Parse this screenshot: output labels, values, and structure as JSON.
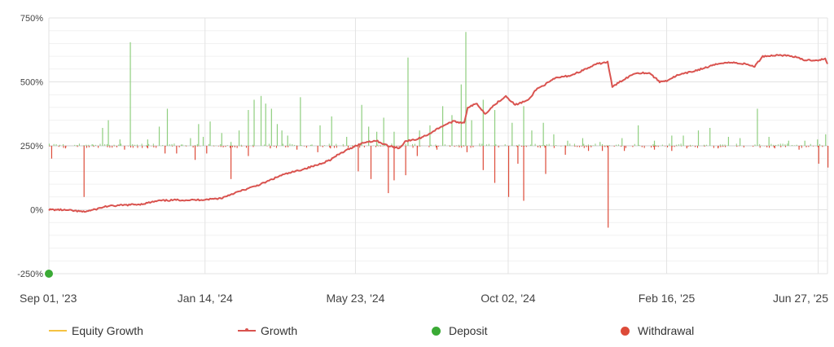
{
  "chart_data": {
    "type": "line",
    "y_tick_labels": [
      "750%",
      "500%",
      "250%",
      "0%",
      "-250%"
    ],
    "y_ticks": [
      750,
      500,
      250,
      0,
      -250
    ],
    "ylim": [
      -250,
      750
    ],
    "x_tick_labels": [
      "Sep 01, '23",
      "Jan 14, '24",
      "May 23, '24",
      "Oct 02, '24",
      "Feb 16, '25",
      "Jun 27, '25"
    ],
    "x_range": [
      "2023-09-01",
      "2025-07-05"
    ],
    "grid": true,
    "legend_position": "bottom",
    "series": [
      {
        "name": "Equity Growth",
        "color": "#f5c242",
        "points": []
      },
      {
        "name": "Growth",
        "color": "#d9534f",
        "points": [
          [
            "2023-09-01",
            0
          ],
          [
            "2023-09-10",
            0
          ],
          [
            "2023-09-20",
            -3
          ],
          [
            "2023-10-01",
            -8
          ],
          [
            "2023-10-10",
            0
          ],
          [
            "2023-10-20",
            13
          ],
          [
            "2023-11-05",
            18
          ],
          [
            "2023-11-20",
            22
          ],
          [
            "2023-12-05",
            35
          ],
          [
            "2023-12-20",
            38
          ],
          [
            "2024-01-05",
            38
          ],
          [
            "2024-01-14",
            40
          ],
          [
            "2024-01-28",
            45
          ],
          [
            "2024-02-05",
            60
          ],
          [
            "2024-02-15",
            75
          ],
          [
            "2024-02-25",
            90
          ],
          [
            "2024-03-05",
            105
          ],
          [
            "2024-03-20",
            135
          ],
          [
            "2024-04-05",
            155
          ],
          [
            "2024-04-20",
            175
          ],
          [
            "2024-05-01",
            195
          ],
          [
            "2024-05-10",
            220
          ],
          [
            "2024-05-23",
            250
          ],
          [
            "2024-06-01",
            265
          ],
          [
            "2024-06-10",
            270
          ],
          [
            "2024-06-20",
            250
          ],
          [
            "2024-06-30",
            240
          ],
          [
            "2024-07-05",
            268
          ],
          [
            "2024-07-15",
            275
          ],
          [
            "2024-07-25",
            295
          ],
          [
            "2024-08-05",
            325
          ],
          [
            "2024-08-15",
            345
          ],
          [
            "2024-08-25",
            340
          ],
          [
            "2024-08-28",
            400
          ],
          [
            "2024-09-05",
            415
          ],
          [
            "2024-09-12",
            375
          ],
          [
            "2024-09-20",
            410
          ],
          [
            "2024-09-30",
            445
          ],
          [
            "2024-10-08",
            410
          ],
          [
            "2024-10-20",
            430
          ],
          [
            "2024-10-26",
            470
          ],
          [
            "2024-11-05",
            495
          ],
          [
            "2024-11-12",
            515
          ],
          [
            "2024-11-25",
            525
          ],
          [
            "2024-12-08",
            550
          ],
          [
            "2024-12-18",
            570
          ],
          [
            "2024-12-27",
            578
          ],
          [
            "2024-12-31",
            480
          ],
          [
            "2025-01-10",
            510
          ],
          [
            "2025-01-20",
            535
          ],
          [
            "2025-02-01",
            535
          ],
          [
            "2025-02-10",
            500
          ],
          [
            "2025-02-16",
            505
          ],
          [
            "2025-02-25",
            525
          ],
          [
            "2025-03-10",
            540
          ],
          [
            "2025-03-25",
            560
          ],
          [
            "2025-04-05",
            575
          ],
          [
            "2025-04-15",
            575
          ],
          [
            "2025-04-25",
            570
          ],
          [
            "2025-05-03",
            560
          ],
          [
            "2025-05-10",
            600
          ],
          [
            "2025-05-25",
            605
          ],
          [
            "2025-06-05",
            600
          ],
          [
            "2025-06-15",
            585
          ],
          [
            "2025-06-27",
            585
          ],
          [
            "2025-07-03",
            590
          ],
          [
            "2025-07-05",
            570
          ]
        ]
      },
      {
        "name": "Deposit",
        "color": "#3aaa35",
        "points": [
          [
            "2023-09-01",
            -250
          ]
        ]
      },
      {
        "name": "Withdrawal",
        "color": "#dd4b39",
        "points": []
      }
    ],
    "positive_bars": [
      {
        "x": "2023-09-10",
        "v": 4
      },
      {
        "x": "2023-09-25",
        "v": 3
      },
      {
        "x": "2023-10-08",
        "v": 6
      },
      {
        "x": "2023-10-17",
        "v": 70
      },
      {
        "x": "2023-10-22",
        "v": 100
      },
      {
        "x": "2023-11-01",
        "v": 25
      },
      {
        "x": "2023-11-10",
        "v": 405
      },
      {
        "x": "2023-11-25",
        "v": 25
      },
      {
        "x": "2023-12-05",
        "v": 75
      },
      {
        "x": "2023-12-12",
        "v": 145
      },
      {
        "x": "2023-12-25",
        "v": 5
      },
      {
        "x": "2024-01-01",
        "v": 30
      },
      {
        "x": "2024-01-08",
        "v": 85
      },
      {
        "x": "2024-01-12",
        "v": 35
      },
      {
        "x": "2024-01-18",
        "v": 95
      },
      {
        "x": "2024-01-28",
        "v": 50
      },
      {
        "x": "2024-02-05",
        "v": 15
      },
      {
        "x": "2024-02-12",
        "v": 60
      },
      {
        "x": "2024-02-20",
        "v": 140
      },
      {
        "x": "2024-02-25",
        "v": 180
      },
      {
        "x": "2024-03-02",
        "v": 195
      },
      {
        "x": "2024-03-06",
        "v": 165
      },
      {
        "x": "2024-03-11",
        "v": 145
      },
      {
        "x": "2024-03-16",
        "v": 85
      },
      {
        "x": "2024-03-20",
        "v": 60
      },
      {
        "x": "2024-03-25",
        "v": 40
      },
      {
        "x": "2024-04-05",
        "v": 190
      },
      {
        "x": "2024-04-15",
        "v": 5
      },
      {
        "x": "2024-04-22",
        "v": 80
      },
      {
        "x": "2024-05-02",
        "v": 115
      },
      {
        "x": "2024-05-15",
        "v": 35
      },
      {
        "x": "2024-05-28",
        "v": 160
      },
      {
        "x": "2024-06-03",
        "v": 75
      },
      {
        "x": "2024-06-10",
        "v": 55
      },
      {
        "x": "2024-06-16",
        "v": 110
      },
      {
        "x": "2024-06-25",
        "v": 55
      },
      {
        "x": "2024-07-07",
        "v": 345
      },
      {
        "x": "2024-07-17",
        "v": 60
      },
      {
        "x": "2024-07-26",
        "v": 80
      },
      {
        "x": "2024-08-06",
        "v": 155
      },
      {
        "x": "2024-08-14",
        "v": 120
      },
      {
        "x": "2024-08-22",
        "v": 240
      },
      {
        "x": "2024-08-26",
        "v": 445
      },
      {
        "x": "2024-08-31",
        "v": 100
      },
      {
        "x": "2024-09-10",
        "v": 180
      },
      {
        "x": "2024-09-20",
        "v": 140
      },
      {
        "x": "2024-10-05",
        "v": 90
      },
      {
        "x": "2024-10-15",
        "v": 155
      },
      {
        "x": "2024-10-22",
        "v": 60
      },
      {
        "x": "2024-11-01",
        "v": 90
      },
      {
        "x": "2024-11-10",
        "v": 45
      },
      {
        "x": "2024-11-22",
        "v": 20
      },
      {
        "x": "2024-12-05",
        "v": 30
      },
      {
        "x": "2024-12-20",
        "v": 15
      },
      {
        "x": "2025-01-08",
        "v": 30
      },
      {
        "x": "2025-01-22",
        "v": 80
      },
      {
        "x": "2025-02-05",
        "v": 20
      },
      {
        "x": "2025-02-20",
        "v": 40
      },
      {
        "x": "2025-03-02",
        "v": 40
      },
      {
        "x": "2025-03-15",
        "v": 60
      },
      {
        "x": "2025-03-25",
        "v": 70
      },
      {
        "x": "2025-04-10",
        "v": 35
      },
      {
        "x": "2025-04-20",
        "v": 30
      },
      {
        "x": "2025-05-05",
        "v": 145
      },
      {
        "x": "2025-05-15",
        "v": 35
      },
      {
        "x": "2025-06-01",
        "v": 20
      },
      {
        "x": "2025-06-15",
        "v": 20
      },
      {
        "x": "2025-06-26",
        "v": 25
      },
      {
        "x": "2025-07-03",
        "v": 45
      }
    ],
    "negative_bars": [
      {
        "x": "2023-09-03",
        "v": 50
      },
      {
        "x": "2023-09-15",
        "v": 10
      },
      {
        "x": "2023-10-01",
        "v": 200
      },
      {
        "x": "2023-11-05",
        "v": 15
      },
      {
        "x": "2023-11-25",
        "v": 10
      },
      {
        "x": "2023-12-10",
        "v": 30
      },
      {
        "x": "2023-12-20",
        "v": 30
      },
      {
        "x": "2024-01-05",
        "v": 55
      },
      {
        "x": "2024-01-15",
        "v": 30
      },
      {
        "x": "2024-02-05",
        "v": 130
      },
      {
        "x": "2024-02-20",
        "v": 40
      },
      {
        "x": "2024-03-10",
        "v": 10
      },
      {
        "x": "2024-04-02",
        "v": 15
      },
      {
        "x": "2024-04-20",
        "v": 25
      },
      {
        "x": "2024-05-01",
        "v": 10
      },
      {
        "x": "2024-05-25",
        "v": 100
      },
      {
        "x": "2024-06-05",
        "v": 130
      },
      {
        "x": "2024-06-20",
        "v": 185
      },
      {
        "x": "2024-06-25",
        "v": 135
      },
      {
        "x": "2024-07-05",
        "v": 115
      },
      {
        "x": "2024-07-15",
        "v": 40
      },
      {
        "x": "2024-08-01",
        "v": 15
      },
      {
        "x": "2024-08-27",
        "v": 25
      },
      {
        "x": "2024-09-10",
        "v": 95
      },
      {
        "x": "2024-09-20",
        "v": 145
      },
      {
        "x": "2024-10-02",
        "v": 200
      },
      {
        "x": "2024-10-10",
        "v": 70
      },
      {
        "x": "2024-10-15",
        "v": 215
      },
      {
        "x": "2024-11-03",
        "v": 110
      },
      {
        "x": "2024-11-20",
        "v": 35
      },
      {
        "x": "2024-12-10",
        "v": 20
      },
      {
        "x": "2024-12-22",
        "v": 20
      },
      {
        "x": "2024-12-27",
        "v": 320
      },
      {
        "x": "2025-01-10",
        "v": 20
      },
      {
        "x": "2025-02-05",
        "v": 15
      },
      {
        "x": "2025-02-20",
        "v": 20
      },
      {
        "x": "2025-03-05",
        "v": 10
      },
      {
        "x": "2025-04-01",
        "v": 10
      },
      {
        "x": "2025-05-20",
        "v": 10
      },
      {
        "x": "2025-06-10",
        "v": 15
      },
      {
        "x": "2025-06-27",
        "v": 70
      },
      {
        "x": "2025-07-05",
        "v": 85
      }
    ]
  },
  "legend": {
    "items": [
      {
        "label": "Equity Growth",
        "style": "line",
        "color": "#f5c242"
      },
      {
        "label": "Growth",
        "style": "line-marker",
        "color": "#d9534f"
      },
      {
        "label": "Deposit",
        "style": "dot",
        "color": "#3aaa35"
      },
      {
        "label": "Withdrawal",
        "style": "dot",
        "color": "#dd4b39"
      }
    ]
  },
  "colors": {
    "growth_line": "#d9534f",
    "positive_bar": "#8fce7f",
    "negative_bar": "#dd4b39",
    "grid": "#e6e6e6",
    "baseline": "#cccccc"
  }
}
